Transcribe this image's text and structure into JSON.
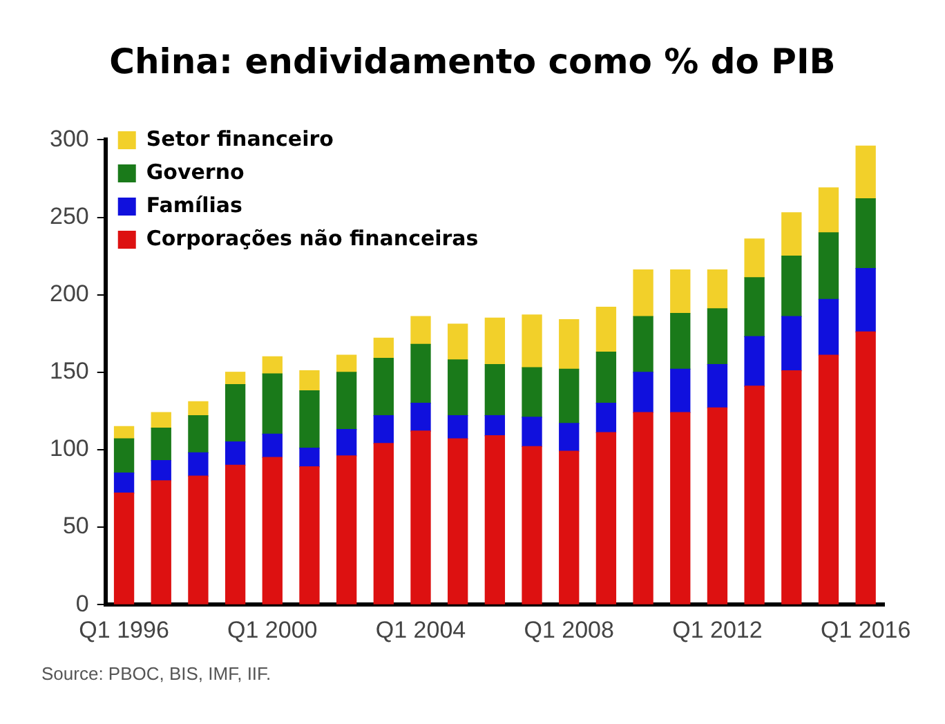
{
  "chart_data": {
    "type": "bar",
    "title": "China: endividamento como % do PIB",
    "stacked": true,
    "categories": [
      "Q1 1996",
      null,
      null,
      null,
      "Q1 2000",
      null,
      null,
      null,
      "Q1 2004",
      null,
      null,
      null,
      "Q1 2008",
      null,
      null,
      null,
      "Q1 2012",
      null,
      null,
      null,
      "Q1 2016"
    ],
    "series": [
      {
        "name": "Corporações não financeiras",
        "color": "#dd1111",
        "values": [
          72,
          80,
          83,
          90,
          95,
          89,
          96,
          104,
          112,
          107,
          109,
          102,
          99,
          111,
          124,
          124,
          127,
          141,
          151,
          161,
          176
        ]
      },
      {
        "name": "Famílias",
        "color": "#1010dd",
        "values": [
          13,
          13,
          15,
          15,
          15,
          12,
          17,
          18,
          18,
          15,
          13,
          19,
          18,
          19,
          26,
          28,
          28,
          32,
          35,
          36,
          41
        ]
      },
      {
        "name": "Governo",
        "color": "#1a7a1a",
        "values": [
          22,
          21,
          24,
          37,
          39,
          37,
          37,
          37,
          38,
          36,
          33,
          32,
          35,
          33,
          36,
          36,
          36,
          38,
          39,
          43,
          45
        ]
      },
      {
        "name": "Setor financeiro",
        "color": "#f2d02a",
        "values": [
          8,
          10,
          9,
          8,
          11,
          13,
          11,
          13,
          18,
          23,
          30,
          34,
          32,
          29,
          30,
          28,
          25,
          25,
          28,
          29,
          34
        ]
      }
    ],
    "ylim": [
      0,
      300
    ],
    "yticks": [
      0,
      50,
      100,
      150,
      200,
      250,
      300
    ],
    "grid": false,
    "legend": "top left",
    "annotations": [
      "Source: PBOC, BIS, IMF, IIF."
    ]
  }
}
